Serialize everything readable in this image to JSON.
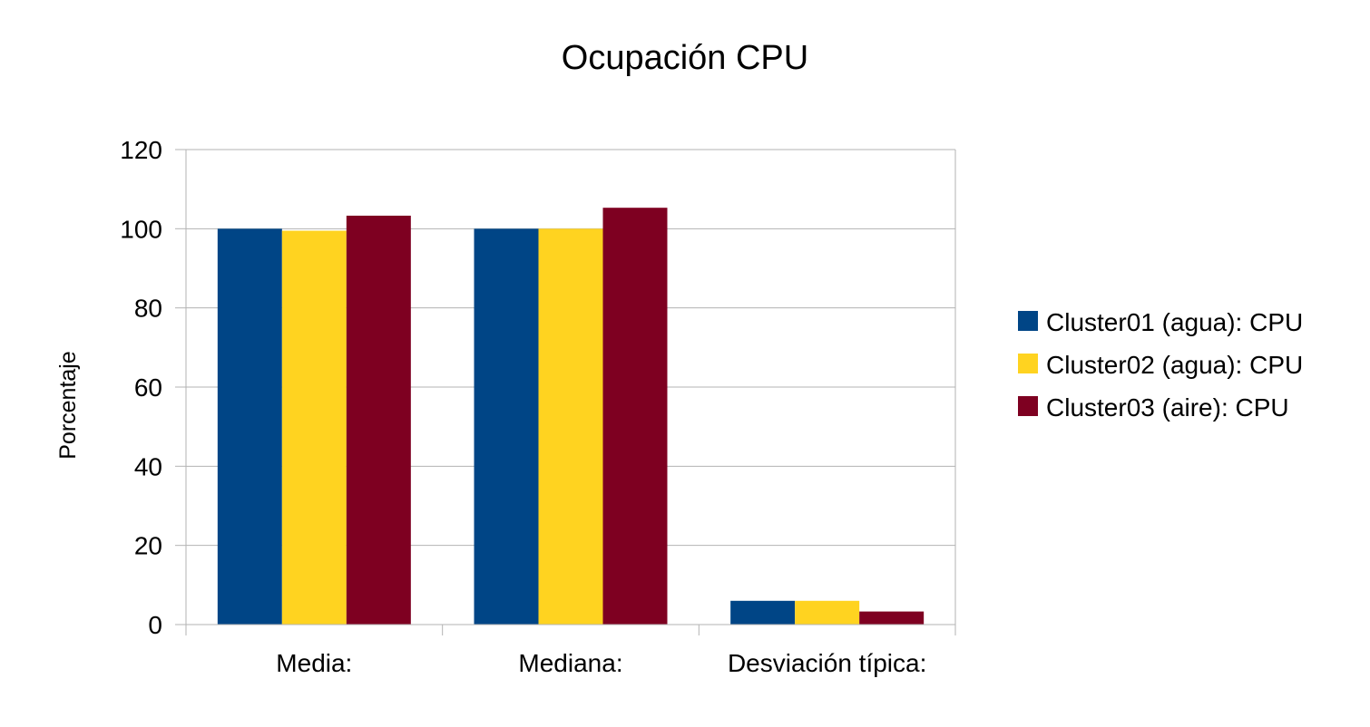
{
  "chart_data": {
    "type": "bar",
    "title": "Ocupación CPU",
    "xlabel": "",
    "ylabel": "Porcentaje",
    "categories": [
      "Media:",
      "Mediana:",
      "Desviación típica:"
    ],
    "series": [
      {
        "name": "Cluster01 (agua): CPU",
        "color": "#004586",
        "values": [
          100,
          100,
          6
        ]
      },
      {
        "name": "Cluster02 (agua): CPU",
        "color": "#ffd320",
        "values": [
          99.5,
          100,
          6
        ]
      },
      {
        "name": "Cluster03 (aire): CPU",
        "color": "#7e0021",
        "values": [
          103.3,
          105.3,
          3.3
        ]
      }
    ],
    "ylim": [
      0,
      120
    ],
    "yticks": [
      "0",
      "20",
      "40",
      "60",
      "80",
      "100",
      "120"
    ],
    "grid": true,
    "legend_position": "right"
  }
}
